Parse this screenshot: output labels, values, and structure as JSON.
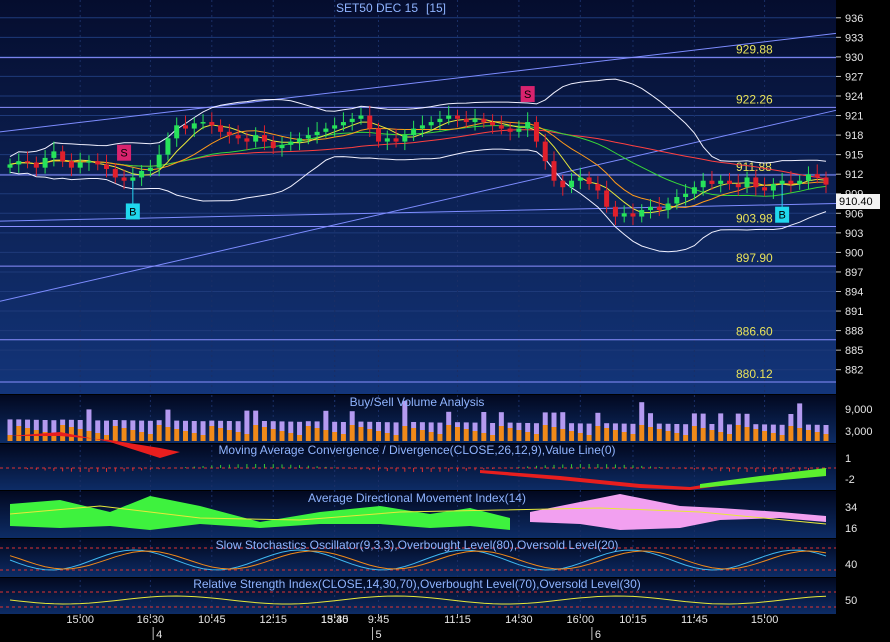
{
  "chart_data": {
    "type": "candlestick",
    "title": "SET50 DEC 15",
    "period": "[15]",
    "price_axis": {
      "ticks": [
        936,
        933,
        930,
        927,
        924,
        921,
        918,
        915,
        912,
        909,
        906,
        903,
        900,
        897,
        894,
        891,
        888,
        885,
        882
      ],
      "range": [
        879.5,
        937.5
      ]
    },
    "current_price": "910.40",
    "levels": [
      {
        "label": "929.88",
        "value": 929.88
      },
      {
        "label": "922.26",
        "value": 922.26
      },
      {
        "label": "911.88",
        "value": 911.88
      },
      {
        "label": "903.98",
        "value": 903.98
      },
      {
        "label": "897.90",
        "value": 897.9
      },
      {
        "label": "886.60",
        "value": 886.6
      },
      {
        "label": "880.12",
        "value": 880.12
      }
    ],
    "signals": [
      {
        "type": "S",
        "bar": 13
      },
      {
        "type": "B",
        "bar": 14
      },
      {
        "type": "S",
        "bar": 59
      },
      {
        "type": "B",
        "bar": 88
      }
    ],
    "x_ticks": [
      {
        "label": "15:00",
        "bar": 8
      },
      {
        "label": "16:30",
        "bar": 16
      },
      {
        "label": "10:45",
        "bar": 23
      },
      {
        "label": "12:15",
        "bar": 30
      },
      {
        "label": "13:45",
        "bar": 37
      },
      {
        "label": "15:30",
        "bar": 37
      },
      {
        "label": "9:45",
        "bar": 42
      },
      {
        "label": "11:15",
        "bar": 51
      },
      {
        "label": "14:30",
        "bar": 58
      },
      {
        "label": "16:00",
        "bar": 65
      },
      {
        "label": "10:15",
        "bar": 71
      },
      {
        "label": "11:45",
        "bar": 78
      },
      {
        "label": "15:00",
        "bar": 86
      }
    ],
    "day_labels": [
      {
        "label": "4",
        "bar": 17
      },
      {
        "label": "5",
        "bar": 42
      },
      {
        "label": "6",
        "bar": 67
      }
    ],
    "closes": [
      913.5,
      914,
      913.8,
      913,
      914.5,
      915.5,
      914,
      913,
      913.8,
      914,
      913.5,
      912.8,
      911.5,
      911,
      911.5,
      912.5,
      913,
      915,
      917.5,
      919.5,
      919,
      919.8,
      920,
      919.5,
      918.5,
      918,
      917.5,
      917,
      918,
      917,
      916,
      916.5,
      917,
      917.5,
      918,
      918.5,
      919,
      919.5,
      920,
      920.5,
      921,
      919,
      917,
      917.5,
      917,
      918,
      919,
      919.5,
      920,
      920.5,
      921,
      920.5,
      920,
      920.5,
      920,
      919.5,
      919,
      918.5,
      919,
      920,
      917,
      914,
      911,
      910,
      911,
      911.5,
      910.5,
      909.5,
      907,
      905.5,
      906,
      905.5,
      906.5,
      907,
      906.5,
      907.5,
      908.5,
      909,
      910,
      911,
      910.5,
      911,
      910.5,
      910,
      911.5,
      910,
      909.5,
      910.5,
      911,
      910.5,
      911,
      912,
      911.5,
      910.4
    ],
    "panels": {
      "volume": {
        "title": "Buy/Sell Volume Analysis",
        "ticks": [
          "9,000",
          "3,000"
        ]
      },
      "macd": {
        "title": "Moving Average Convergence / Divergence(CLOSE,26,12,9),Value Line(0)",
        "ticks": [
          "1",
          "-2"
        ]
      },
      "adx": {
        "title": "Average Directional Movement Index(14)",
        "ticks": [
          "34",
          "16"
        ]
      },
      "stoch": {
        "title": "Slow Stochastics Oscillator(9,3,3),Overbought Level(80),Oversold Level(20)",
        "ticks": [
          "40"
        ]
      },
      "rsi": {
        "title": "Relative Strength Index(CLOSE,14,30,70),Overbought Level(70),Oversold Level(30)",
        "ticks": [
          "50"
        ]
      }
    }
  }
}
